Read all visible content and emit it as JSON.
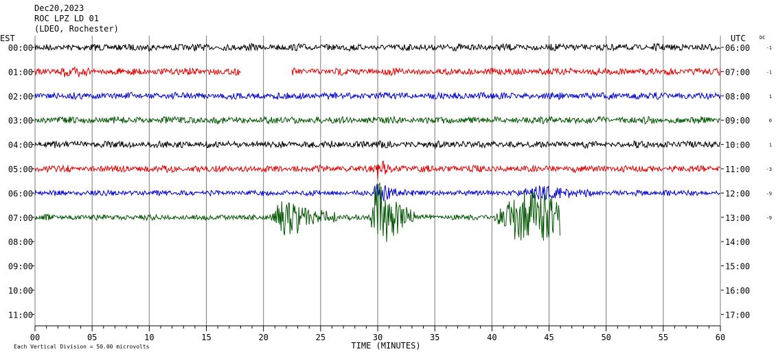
{
  "header": {
    "date": "Dec20,2023",
    "station": "ROC LPZ LD 01",
    "network": "(LDEO, Rochester)"
  },
  "chart_data": {
    "type": "line",
    "subtype": "helicorder seismogram",
    "left_axis_label": "EST",
    "right_axis_label": "UTC",
    "dc_label": "DC",
    "xlabel": "TIME (MINUTES)",
    "xlim": [
      0,
      60
    ],
    "x_ticks": [
      "00",
      "05",
      "10",
      "15",
      "20",
      "25",
      "30",
      "35",
      "40",
      "45",
      "50",
      "55",
      "60"
    ],
    "footer_note": "Each Vertical Division =   50.00 microvolts",
    "grid": true,
    "colors": [
      "#000000",
      "#dd0000",
      "#0000cc",
      "#005500"
    ],
    "rows": [
      {
        "est": "00:00",
        "utc": "06:00",
        "dc": "-1",
        "color": "#000000",
        "segments": [
          [
            0,
            60
          ]
        ],
        "amp": 5,
        "events": []
      },
      {
        "est": "01:00",
        "utc": "07:00",
        "dc": "-1",
        "color": "#dd0000",
        "segments": [
          [
            0,
            18
          ],
          [
            22.5,
            60
          ]
        ],
        "amp": 5,
        "events": [
          {
            "t": 2.8,
            "amp": 6,
            "dur": 1.2
          }
        ]
      },
      {
        "est": "02:00",
        "utc": "08:00",
        "dc": "1",
        "color": "#0000cc",
        "segments": [
          [
            0,
            60
          ]
        ],
        "amp": 5,
        "events": []
      },
      {
        "est": "03:00",
        "utc": "09:00",
        "dc": "0",
        "color": "#005500",
        "segments": [
          [
            0,
            60
          ]
        ],
        "amp": 5,
        "events": []
      },
      {
        "est": "04:00",
        "utc": "10:00",
        "dc": "1",
        "color": "#000000",
        "segments": [
          [
            0,
            60
          ]
        ],
        "amp": 5,
        "events": []
      },
      {
        "est": "05:00",
        "utc": "11:00",
        "dc": "-3",
        "color": "#dd0000",
        "segments": [
          [
            0,
            60
          ]
        ],
        "amp": 5,
        "events": [
          {
            "t": 30,
            "amp": 19,
            "dur": 0.3
          }
        ]
      },
      {
        "est": "06:00",
        "utc": "12:00",
        "dc": "-9",
        "color": "#0000cc",
        "segments": [
          [
            0,
            60
          ]
        ],
        "amp": 4,
        "events": [
          {
            "t": 30,
            "amp": 16,
            "dur": 0.6
          },
          {
            "t": 44,
            "amp": 10,
            "dur": 2
          }
        ]
      },
      {
        "est": "07:00",
        "utc": "13:00",
        "dc": "-9",
        "color": "#005500",
        "segments": [
          [
            0,
            46
          ]
        ],
        "amp": 4,
        "events": [
          {
            "t": 21.8,
            "amp": 32,
            "dur": 1.2
          },
          {
            "t": 30,
            "amp": 60,
            "dur": 0.8
          },
          {
            "t": 43,
            "amp": 45,
            "dur": 3
          }
        ]
      },
      {
        "est": "08:00",
        "utc": "14:00",
        "dc": "",
        "color": "#000000",
        "segments": [],
        "amp": 0,
        "events": []
      },
      {
        "est": "09:00",
        "utc": "15:00",
        "dc": "",
        "color": "#000000",
        "segments": [],
        "amp": 0,
        "events": []
      },
      {
        "est": "10:00",
        "utc": "16:00",
        "dc": "",
        "color": "#000000",
        "segments": [],
        "amp": 0,
        "events": []
      },
      {
        "est": "11:00",
        "utc": "17:00",
        "dc": "",
        "color": "#000000",
        "segments": [],
        "amp": 0,
        "events": []
      }
    ]
  }
}
